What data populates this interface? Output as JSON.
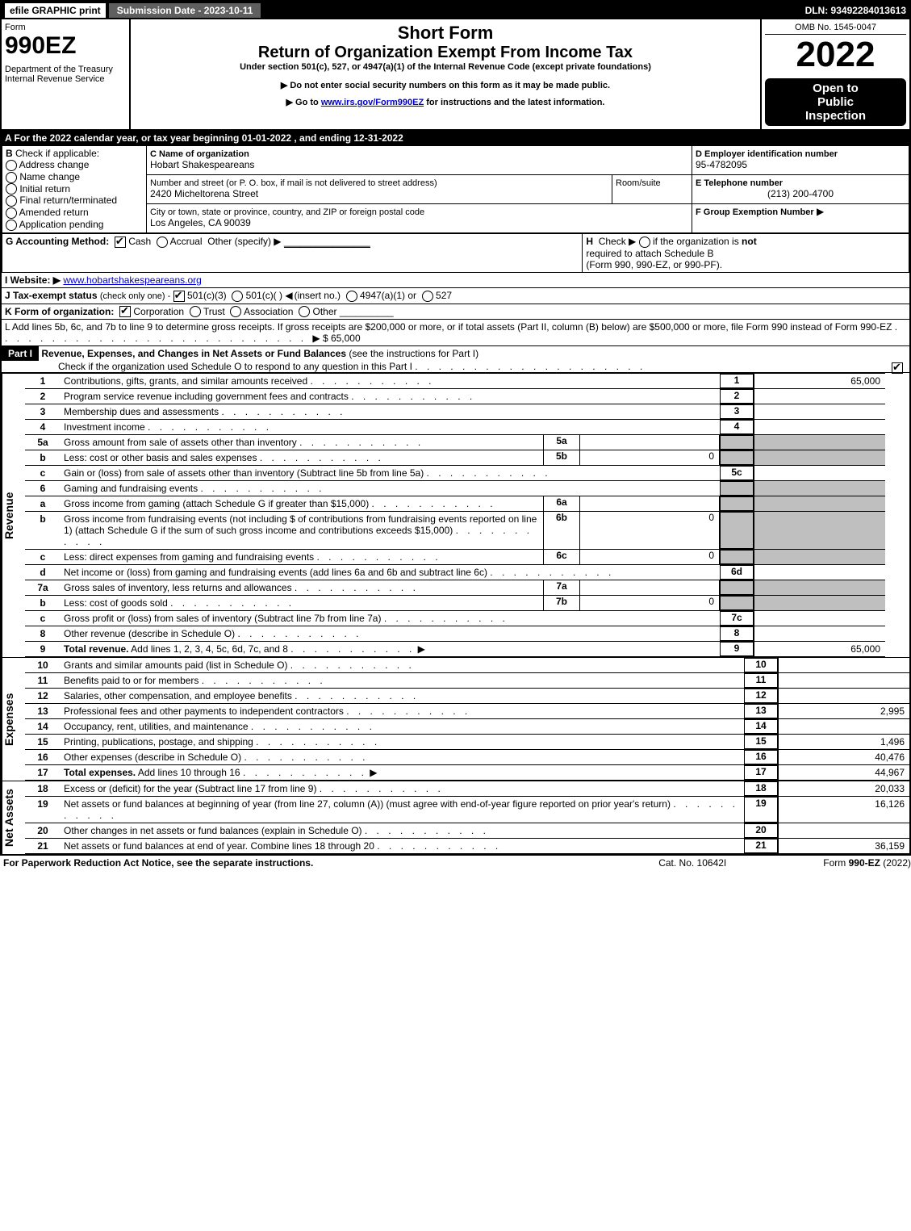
{
  "topbar": {
    "efile": "efile GRAPHIC print",
    "submission": "Submission Date - 2023-10-11",
    "dln": "DLN: 93492284013613"
  },
  "header": {
    "form_word": "Form",
    "form_no": "990EZ",
    "dept1": "Department of the Treasury",
    "dept2": "Internal Revenue Service",
    "title1": "Short Form",
    "title2": "Return of Organization Exempt From Income Tax",
    "sub1": "Under section 501(c), 527, or 4947(a)(1) of the Internal Revenue Code (except private foundations)",
    "sub2_pre": "▶ Do not enter social security numbers on this form as it may be made public.",
    "sub3_pre": "▶ Go to ",
    "sub3_link": "www.irs.gov/Form990EZ",
    "sub3_post": " for instructions and the latest information.",
    "omb": "OMB No. 1545-0047",
    "year": "2022",
    "openL1": "Open to",
    "openL2": "Public",
    "openL3": "Inspection"
  },
  "rowA": "A  For the 2022 calendar year, or tax year beginning 01-01-2022 , and ending 12-31-2022",
  "boxB": {
    "hdr": "B",
    "txt": "Check if applicable:",
    "opts": [
      "Address change",
      "Name change",
      "Initial return",
      "Final return/terminated",
      "Amended return",
      "Application pending"
    ]
  },
  "boxC": {
    "lblC": "C Name of organization",
    "name": "Hobart Shakespeareans",
    "lblAddr": "Number and street (or P. O. box, if mail is not delivered to street address)",
    "room": "Room/suite",
    "addr": "2420 Micheltorena Street",
    "lblCity": "City or town, state or province, country, and ZIP or foreign postal code",
    "city": "Los Angeles, CA  90039"
  },
  "boxD": {
    "lbl": "D Employer identification number",
    "val": "95-4782095"
  },
  "boxE": {
    "lbl": "E Telephone number",
    "val": "(213) 200-4700"
  },
  "boxF": {
    "lbl": "F Group Exemption Number",
    "arrow": "▶"
  },
  "rowG": {
    "lbl": "G Accounting Method:",
    "cash": "Cash",
    "accr": "Accrual",
    "other": "Other (specify) ▶",
    "line": "________________"
  },
  "rowH": {
    "lbl": "H",
    "txt1": "Check ▶",
    "txt2": "if the organization is ",
    "not": "not",
    "txt3": "required to attach Schedule B",
    "txt4": "(Form 990, 990-EZ, or 990-PF)."
  },
  "rowI": {
    "lbl": "I Website: ▶",
    "val": "www.hobartshakespeareans.org"
  },
  "rowJ": {
    "lbl": "J Tax-exempt status",
    "sub": "(check only one) -",
    "o1": "501(c)(3)",
    "o2": "501(c)(  )",
    "o2a": "(insert no.)",
    "o3": "4947(a)(1) or",
    "o4": "527"
  },
  "rowK": {
    "lbl": "K Form of organization:",
    "opts": [
      "Corporation",
      "Trust",
      "Association",
      "Other"
    ],
    "line": "__________"
  },
  "rowL": {
    "txt": "L Add lines 5b, 6c, and 7b to line 9 to determine gross receipts. If gross receipts are $200,000 or more, or if total assets (Part II, column (B) below) are $500,000 or more, file Form 990 instead of Form 990-EZ",
    "val": "$ 65,000"
  },
  "partI": {
    "badge": "Part I",
    "title": "Revenue, Expenses, and Changes in Net Assets or Fund Balances",
    "paren": "(see the instructions for Part I)",
    "check_txt": "Check if the organization used Schedule O to respond to any question in this Part I"
  },
  "sections": {
    "revenue": "Revenue",
    "expenses": "Expenses",
    "netassets": "Net Assets"
  },
  "lines": [
    {
      "n": "1",
      "d": "Contributions, gifts, grants, and similar amounts received",
      "box": "1",
      "v": "65,000"
    },
    {
      "n": "2",
      "d": "Program service revenue including government fees and contracts",
      "box": "2",
      "v": ""
    },
    {
      "n": "3",
      "d": "Membership dues and assessments",
      "box": "3",
      "v": ""
    },
    {
      "n": "4",
      "d": "Investment income",
      "box": "4",
      "v": ""
    },
    {
      "n": "5a",
      "d": "Gross amount from sale of assets other than inventory",
      "mini": "5a",
      "miniv": ""
    },
    {
      "n": "b",
      "d": "Less: cost or other basis and sales expenses",
      "mini": "5b",
      "miniv": "0"
    },
    {
      "n": "c",
      "d": "Gain or (loss) from sale of assets other than inventory (Subtract line 5b from line 5a)",
      "box": "5c",
      "v": ""
    },
    {
      "n": "6",
      "d": "Gaming and fundraising events"
    },
    {
      "n": "a",
      "d": "Gross income from gaming (attach Schedule G if greater than $15,000)",
      "mini": "6a",
      "miniv": ""
    },
    {
      "n": "b",
      "d": "Gross income from fundraising events (not including $                 of contributions from fundraising events reported on line 1) (attach Schedule G if the sum of such gross income and contributions exceeds $15,000)",
      "mini": "6b",
      "miniv": "0"
    },
    {
      "n": "c",
      "d": "Less: direct expenses from gaming and fundraising events",
      "mini": "6c",
      "miniv": "0"
    },
    {
      "n": "d",
      "d": "Net income or (loss) from gaming and fundraising events (add lines 6a and 6b and subtract line 6c)",
      "box": "6d",
      "v": ""
    },
    {
      "n": "7a",
      "d": "Gross sales of inventory, less returns and allowances",
      "mini": "7a",
      "miniv": ""
    },
    {
      "n": "b",
      "d": "Less: cost of goods sold",
      "mini": "7b",
      "miniv": "0"
    },
    {
      "n": "c",
      "d": "Gross profit or (loss) from sales of inventory (Subtract line 7b from line 7a)",
      "box": "7c",
      "v": ""
    },
    {
      "n": "8",
      "d": "Other revenue (describe in Schedule O)",
      "box": "8",
      "v": ""
    },
    {
      "n": "9",
      "d": "Total revenue. Add lines 1, 2, 3, 4, 5c, 6d, 7c, and 8",
      "box": "9",
      "v": "65,000",
      "bold": true,
      "arrow": true
    }
  ],
  "exp_lines": [
    {
      "n": "10",
      "d": "Grants and similar amounts paid (list in Schedule O)",
      "box": "10",
      "v": ""
    },
    {
      "n": "11",
      "d": "Benefits paid to or for members",
      "box": "11",
      "v": ""
    },
    {
      "n": "12",
      "d": "Salaries, other compensation, and employee benefits",
      "box": "12",
      "v": ""
    },
    {
      "n": "13",
      "d": "Professional fees and other payments to independent contractors",
      "box": "13",
      "v": "2,995"
    },
    {
      "n": "14",
      "d": "Occupancy, rent, utilities, and maintenance",
      "box": "14",
      "v": ""
    },
    {
      "n": "15",
      "d": "Printing, publications, postage, and shipping",
      "box": "15",
      "v": "1,496"
    },
    {
      "n": "16",
      "d": "Other expenses (describe in Schedule O)",
      "box": "16",
      "v": "40,476"
    },
    {
      "n": "17",
      "d": "Total expenses. Add lines 10 through 16",
      "box": "17",
      "v": "44,967",
      "bold": true,
      "arrow": true
    }
  ],
  "na_lines": [
    {
      "n": "18",
      "d": "Excess or (deficit) for the year (Subtract line 17 from line 9)",
      "box": "18",
      "v": "20,033"
    },
    {
      "n": "19",
      "d": "Net assets or fund balances at beginning of year (from line 27, column (A)) (must agree with end-of-year figure reported on prior year's return)",
      "box": "19",
      "v": "16,126"
    },
    {
      "n": "20",
      "d": "Other changes in net assets or fund balances (explain in Schedule O)",
      "box": "20",
      "v": ""
    },
    {
      "n": "21",
      "d": "Net assets or fund balances at end of year. Combine lines 18 through 20",
      "box": "21",
      "v": "36,159"
    }
  ],
  "footer": {
    "l": "For Paperwork Reduction Act Notice, see the separate instructions.",
    "m": "Cat. No. 10642I",
    "r1": "Form ",
    "r2": "990-EZ",
    "r3": " (2022)"
  }
}
